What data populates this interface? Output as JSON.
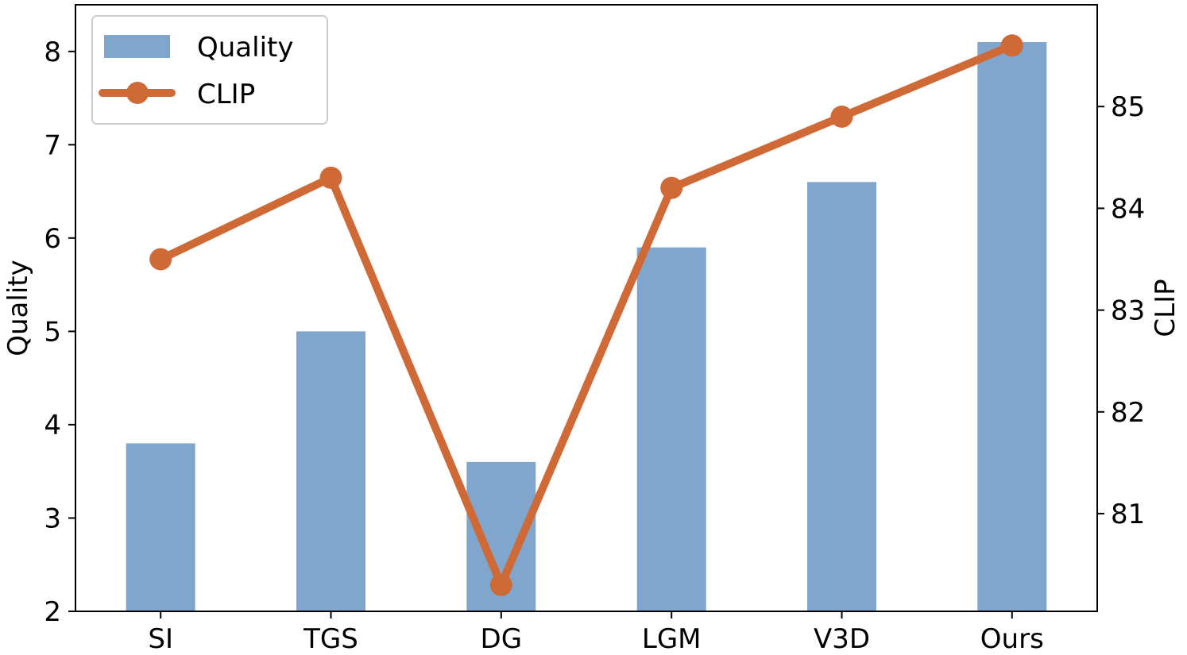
{
  "chart_data": {
    "type": "bar",
    "categories": [
      "SI",
      "TGS",
      "DG",
      "LGM",
      "V3D",
      "Ours"
    ],
    "series": [
      {
        "name": "Quality",
        "type": "bar",
        "axis": "left",
        "color": "#81a6cd",
        "values": [
          3.8,
          5.0,
          3.6,
          5.9,
          6.6,
          8.1
        ]
      },
      {
        "name": "CLIP",
        "type": "line",
        "axis": "right",
        "color": "#cf6a37",
        "marker": "circle",
        "values": [
          83.5,
          84.3,
          80.3,
          84.2,
          84.9,
          85.6
        ]
      }
    ],
    "title": "",
    "xlabel": "",
    "ylabel": "Quality",
    "ylabel_right": "CLIP",
    "ylim": [
      2,
      8.5
    ],
    "ylim_right": [
      80.04,
      86.0
    ],
    "yticks": [
      2,
      3,
      4,
      5,
      6,
      7,
      8
    ],
    "yticks_right": [
      81,
      82,
      83,
      84,
      85
    ],
    "grid": false,
    "legend": "top-left"
  }
}
